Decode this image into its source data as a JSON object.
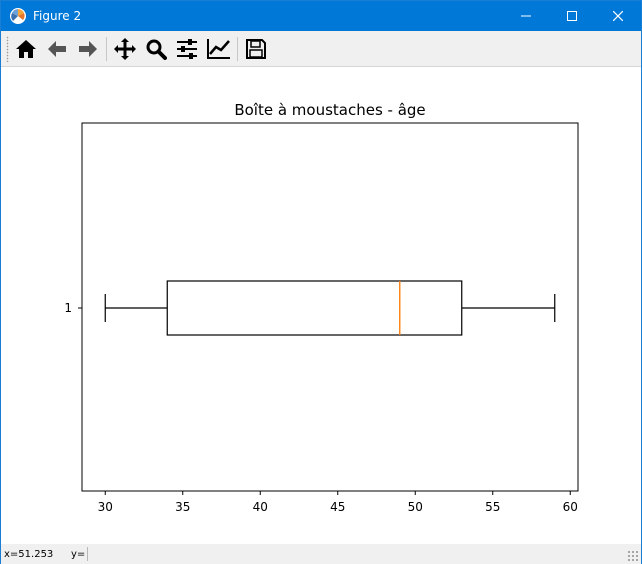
{
  "window": {
    "title": "Figure 2"
  },
  "toolbar": {
    "buttons": [
      {
        "name": "home-icon",
        "label": "Home"
      },
      {
        "name": "back-icon",
        "label": "Back"
      },
      {
        "name": "forward-icon",
        "label": "Forward"
      },
      {
        "name": "pan-icon",
        "label": "Pan"
      },
      {
        "name": "zoom-icon",
        "label": "Zoom"
      },
      {
        "name": "subplots-icon",
        "label": "Subplots"
      },
      {
        "name": "customize-icon",
        "label": "Customize"
      },
      {
        "name": "save-icon",
        "label": "Save"
      }
    ]
  },
  "status": {
    "x_readout": "x=51.253",
    "y_readout": "y="
  },
  "chart_data": {
    "type": "boxplot",
    "orientation": "horizontal",
    "title": "Boîte à moustaches - âge",
    "xlabel": "",
    "ylabel": "",
    "xlim": [
      28.5,
      60.5
    ],
    "x_ticks": [
      30,
      35,
      40,
      45,
      50,
      55,
      60
    ],
    "y_ticks": [
      "1"
    ],
    "boxes": [
      {
        "label": "1",
        "whisker_low": 30,
        "q1": 34,
        "median": 49,
        "q3": 53,
        "whisker_high": 59
      }
    ],
    "colors": {
      "box": "#000000",
      "median": "#ff7f0e"
    },
    "grid": false
  }
}
